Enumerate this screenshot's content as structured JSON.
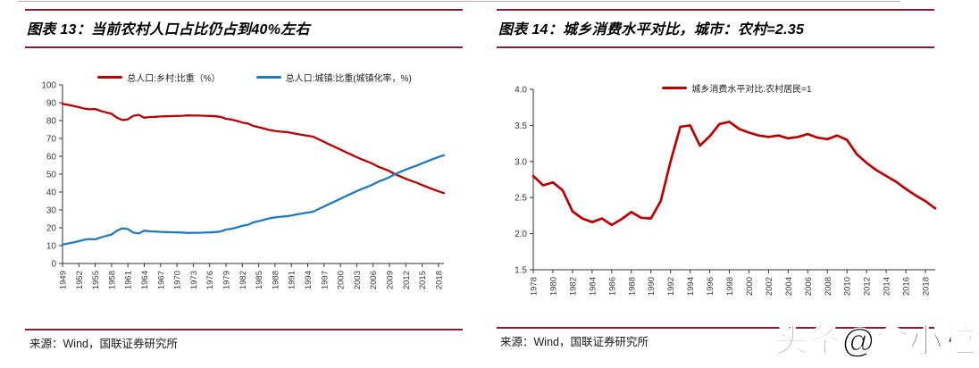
{
  "colors": {
    "red": "#c00000",
    "blue": "#1f7bc3",
    "rule": "#8e1a3a",
    "page_top_rule": "#c9a9b6",
    "axis": "#333333",
    "tick_text": "#3a3a3a",
    "source_text": "#1a1a1a"
  },
  "left_panel": {
    "title": "图表 13：当前农村人口占比仍占到40%左右",
    "source": "来源：Wind，国联证券研究所"
  },
  "right_panel": {
    "title": "图表 14：城乡消费水平对比，城市：农村=2.35",
    "source": "来源：Wind，国联证券研究所"
  },
  "watermark": "头条@俞小粒",
  "chart_data": [
    {
      "type": "line",
      "title": "图表 13：当前农村人口占比仍占到40%左右",
      "xlabel": "",
      "ylabel": "",
      "ylim": [
        0,
        100
      ],
      "yticks": [
        "0",
        "10",
        "20",
        "30",
        "40",
        "50",
        "60",
        "70",
        "80",
        "90",
        "100"
      ],
      "grid": false,
      "legend_position": "top",
      "xtick_step": 3,
      "x_tick_labels": [
        "1949",
        "1952",
        "1955",
        "1958",
        "1961",
        "1964",
        "1967",
        "1970",
        "1973",
        "1976",
        "1979",
        "1982",
        "1985",
        "1988",
        "1991",
        "1994",
        "1997",
        "2000",
        "2003",
        "2006",
        "2009",
        "2012",
        "2015",
        "2018"
      ],
      "x": [
        1949,
        1950,
        1951,
        1952,
        1953,
        1954,
        1955,
        1956,
        1957,
        1958,
        1959,
        1960,
        1961,
        1962,
        1963,
        1964,
        1965,
        1966,
        1967,
        1968,
        1969,
        1970,
        1971,
        1972,
        1973,
        1974,
        1975,
        1976,
        1977,
        1978,
        1979,
        1980,
        1981,
        1982,
        1983,
        1984,
        1985,
        1986,
        1987,
        1988,
        1989,
        1990,
        1991,
        1992,
        1993,
        1994,
        1995,
        1996,
        1997,
        1998,
        1999,
        2000,
        2001,
        2002,
        2003,
        2004,
        2005,
        2006,
        2007,
        2008,
        2009,
        2010,
        2011,
        2012,
        2013,
        2014,
        2015,
        2016,
        2017,
        2018,
        2019
      ],
      "series": [
        {
          "name": "总人口:乡村:比重（%）",
          "color": "#c00000",
          "values": [
            89.4,
            88.8,
            88.2,
            87.5,
            86.7,
            86.3,
            86.5,
            85.4,
            84.6,
            83.8,
            81.6,
            80.3,
            80.7,
            82.7,
            83.2,
            81.6,
            82.0,
            82.1,
            82.3,
            82.4,
            82.5,
            82.6,
            82.7,
            82.9,
            82.8,
            82.8,
            82.7,
            82.6,
            82.4,
            82.1,
            81.0,
            80.6,
            79.8,
            78.9,
            78.4,
            77.0,
            76.3,
            75.5,
            74.7,
            74.2,
            73.8,
            73.6,
            73.1,
            72.5,
            72.0,
            71.5,
            71.0,
            69.5,
            68.1,
            66.6,
            65.2,
            63.8,
            62.3,
            60.9,
            59.5,
            58.2,
            57.0,
            55.7,
            54.1,
            53.0,
            51.7,
            50.0,
            48.7,
            47.4,
            46.3,
            45.2,
            43.9,
            42.7,
            41.5,
            40.4,
            39.4
          ]
        },
        {
          "name": "总人口:城镇:比重(城镇化率，%)",
          "color": "#1f7bc3",
          "values": [
            10.6,
            11.2,
            11.8,
            12.5,
            13.3,
            13.7,
            13.5,
            14.6,
            15.4,
            16.2,
            18.4,
            19.7,
            19.3,
            17.3,
            16.8,
            18.4,
            18.0,
            17.9,
            17.7,
            17.6,
            17.5,
            17.4,
            17.3,
            17.1,
            17.2,
            17.2,
            17.3,
            17.4,
            17.6,
            17.9,
            19.0,
            19.4,
            20.2,
            21.1,
            21.6,
            23.0,
            23.7,
            24.5,
            25.3,
            25.8,
            26.2,
            26.4,
            26.9,
            27.5,
            28.0,
            28.5,
            29.0,
            30.5,
            31.9,
            33.4,
            34.8,
            36.2,
            37.7,
            39.1,
            40.5,
            41.8,
            43.0,
            44.3,
            45.9,
            47.0,
            48.3,
            50.0,
            51.3,
            52.6,
            53.7,
            54.8,
            56.1,
            57.3,
            58.5,
            59.6,
            60.6
          ]
        }
      ]
    },
    {
      "type": "line",
      "title": "图表 14：城乡消费水平对比，城市：农村=2.35",
      "xlabel": "",
      "ylabel": "",
      "ylim": [
        1.5,
        4.0
      ],
      "yticks": [
        "1.5",
        "2.0",
        "2.5",
        "3.0",
        "3.5",
        "4.0"
      ],
      "grid": false,
      "legend_position": "top",
      "xtick_step": 2,
      "x_tick_labels": [
        "1978",
        "1980",
        "1982",
        "1984",
        "1986",
        "1988",
        "1990",
        "1992",
        "1994",
        "1996",
        "1998",
        "2000",
        "2002",
        "2004",
        "2006",
        "2008",
        "2010",
        "2012",
        "2014",
        "2016",
        "2018"
      ],
      "x": [
        1978,
        1979,
        1980,
        1981,
        1982,
        1983,
        1984,
        1985,
        1986,
        1987,
        1988,
        1989,
        1990,
        1991,
        1992,
        1993,
        1994,
        1995,
        1996,
        1997,
        1998,
        1999,
        2000,
        2001,
        2002,
        2003,
        2004,
        2005,
        2006,
        2007,
        2008,
        2009,
        2010,
        2011,
        2012,
        2013,
        2014,
        2015,
        2016,
        2017,
        2018,
        2019
      ],
      "series": [
        {
          "name": "城乡消费水平对比:农村居民=1",
          "color": "#c00000",
          "values": [
            2.8,
            2.67,
            2.71,
            2.6,
            2.31,
            2.21,
            2.16,
            2.21,
            2.12,
            2.2,
            2.3,
            2.22,
            2.21,
            2.45,
            3.0,
            3.48,
            3.5,
            3.22,
            3.35,
            3.52,
            3.55,
            3.45,
            3.4,
            3.36,
            3.34,
            3.36,
            3.32,
            3.34,
            3.38,
            3.33,
            3.31,
            3.36,
            3.3,
            3.1,
            2.98,
            2.88,
            2.8,
            2.72,
            2.62,
            2.53,
            2.45,
            2.35
          ]
        }
      ]
    }
  ]
}
